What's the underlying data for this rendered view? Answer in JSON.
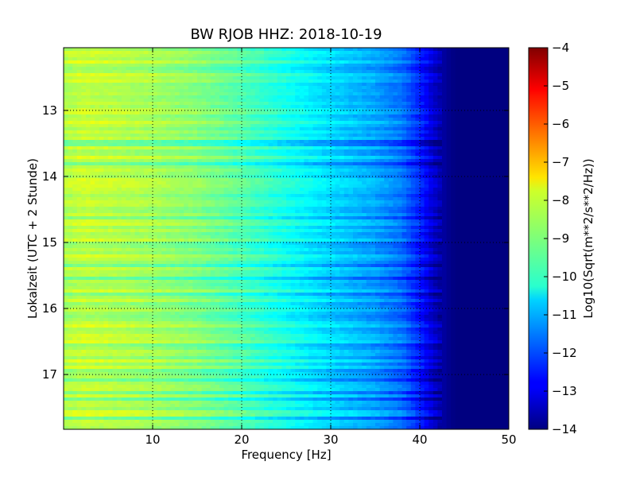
{
  "chart_data": {
    "type": "heatmap",
    "title": "BW RJOB HHZ: 2018-10-19",
    "xlabel": "Frequency [Hz]",
    "ylabel": "Lokalzeit (UTC + 2 Stunde)",
    "xlim": [
      0,
      50
    ],
    "ylim": [
      17.83,
      12.05
    ],
    "x_ticks": [
      10,
      20,
      30,
      40,
      50
    ],
    "y_ticks": [
      13,
      14,
      15,
      16,
      17
    ],
    "x_tick_labels": [
      "10",
      "20",
      "30",
      "40",
      "50"
    ],
    "y_tick_labels": [
      "13",
      "14",
      "15",
      "16",
      "17"
    ],
    "grid": true,
    "colormap": "jet",
    "colorbar": {
      "label": "Log10(Sqrt(m**2/s**2/Hz))",
      "range": [
        -14,
        -4
      ],
      "ticks": [
        -4,
        -5,
        -6,
        -7,
        -8,
        -9,
        -10,
        -11,
        -12,
        -13,
        -14
      ],
      "tick_labels": [
        "−4",
        "−5",
        "−6",
        "−7",
        "−8",
        "−9",
        "−10",
        "−11",
        "−12",
        "−13",
        "−14"
      ]
    },
    "spectrum_profile": {
      "frequency_hz": [
        0,
        2,
        5,
        10,
        15,
        20,
        25,
        30,
        35,
        38,
        40,
        42,
        43,
        44,
        50
      ],
      "log10_psd": [
        -8.5,
        -8.3,
        -8.4,
        -8.6,
        -8.9,
        -9.4,
        -10.0,
        -10.6,
        -11.1,
        -11.6,
        -12.4,
        -13.4,
        -13.8,
        -14.0,
        -14.0
      ]
    }
  }
}
